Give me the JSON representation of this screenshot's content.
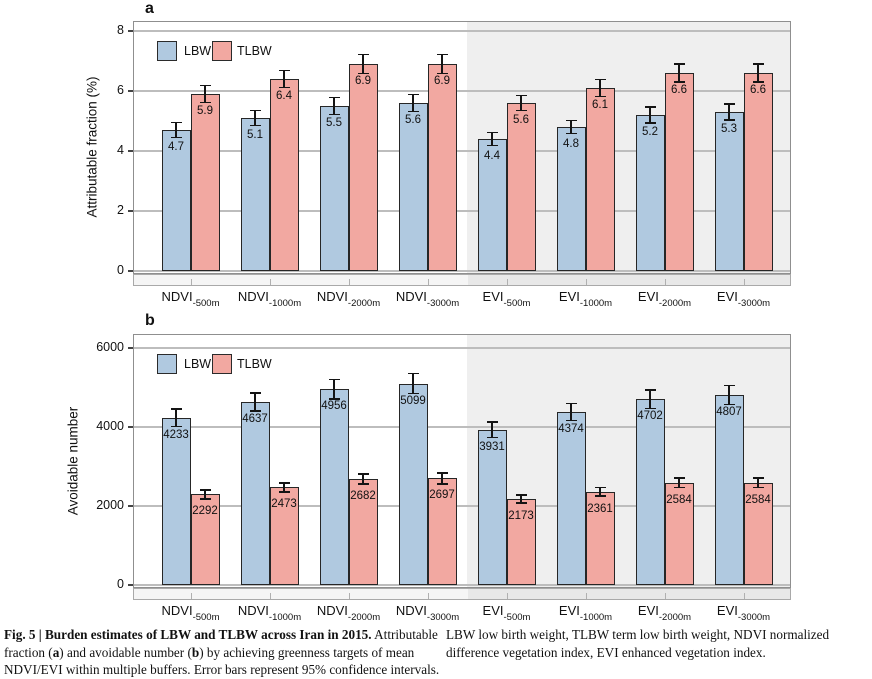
{
  "colors": {
    "lbw_fill": "#b0c9e0",
    "tlbw_fill": "#f2a8a1",
    "bar_border": "#262626",
    "panel_border": "#8f8f8f",
    "gridline": "#bdbdbd",
    "shade": "#efefef",
    "strip_left": "#f5f5f5",
    "strip_right": "#e8e8e8",
    "error_bar": "#141414"
  },
  "chart_data": [
    {
      "type": "bar",
      "panel_label": "a",
      "title": "",
      "xlabel": "",
      "ylabel": "Attributable fraction (%)",
      "ylim": [
        0,
        8
      ],
      "ytick_values": [
        0,
        2,
        4,
        6,
        8
      ],
      "ytick_labels": [
        "0",
        "2",
        "4",
        "6",
        "8"
      ],
      "grid": true,
      "legend_position": "top-left-inside",
      "legend_entries": [
        "LBW",
        "TLBW"
      ],
      "shaded_region_note": "EVI group half of panel shaded light gray",
      "categories": [
        {
          "main": "NDVI",
          "sub": "-500m"
        },
        {
          "main": "NDVI",
          "sub": "-1000m"
        },
        {
          "main": "NDVI",
          "sub": "-2000m"
        },
        {
          "main": "NDVI",
          "sub": "-3000m"
        },
        {
          "main": "EVI",
          "sub": "-500m"
        },
        {
          "main": "EVI",
          "sub": "-1000m"
        },
        {
          "main": "EVI",
          "sub": "-2000m"
        },
        {
          "main": "EVI",
          "sub": "-3000m"
        }
      ],
      "series": [
        {
          "name": "LBW",
          "color_key": "lbw_fill",
          "values": [
            4.7,
            5.1,
            5.5,
            5.6,
            4.4,
            4.8,
            5.2,
            5.3
          ],
          "labels": [
            "4.7",
            "5.1",
            "5.5",
            "5.6",
            "4.4",
            "4.8",
            "5.2",
            "5.3"
          ],
          "errors": [
            0.25,
            0.25,
            0.28,
            0.28,
            0.22,
            0.22,
            0.27,
            0.27
          ]
        },
        {
          "name": "TLBW",
          "color_key": "tlbw_fill",
          "values": [
            5.9,
            6.4,
            6.9,
            6.9,
            5.6,
            6.1,
            6.6,
            6.6
          ],
          "labels": [
            "5.9",
            "6.4",
            "6.9",
            "6.9",
            "5.6",
            "6.1",
            "6.6",
            "6.6"
          ],
          "errors": [
            0.28,
            0.28,
            0.32,
            0.32,
            0.25,
            0.28,
            0.3,
            0.3
          ]
        }
      ]
    },
    {
      "type": "bar",
      "panel_label": "b",
      "title": "",
      "xlabel": "",
      "ylabel": "Avoidable number",
      "ylim": [
        0,
        6000
      ],
      "ytick_values": [
        0,
        2000,
        4000,
        6000
      ],
      "ytick_labels": [
        "0",
        "2000",
        "4000",
        "6000"
      ],
      "grid": true,
      "legend_position": "top-left-inside",
      "legend_entries": [
        "LBW",
        "TLBW"
      ],
      "shaded_region_note": "EVI group half of panel shaded light gray",
      "categories": [
        {
          "main": "NDVI",
          "sub": "-500m"
        },
        {
          "main": "NDVI",
          "sub": "-1000m"
        },
        {
          "main": "NDVI",
          "sub": "-2000m"
        },
        {
          "main": "NDVI",
          "sub": "-3000m"
        },
        {
          "main": "EVI",
          "sub": "-500m"
        },
        {
          "main": "EVI",
          "sub": "-1000m"
        },
        {
          "main": "EVI",
          "sub": "-2000m"
        },
        {
          "main": "EVI",
          "sub": "-3000m"
        }
      ],
      "series": [
        {
          "name": "LBW",
          "color_key": "lbw_fill",
          "values": [
            4233,
            4637,
            4956,
            5099,
            3931,
            4374,
            4702,
            4807
          ],
          "labels": [
            "4233",
            "4637",
            "4956",
            "5099",
            "3931",
            "4374",
            "4702",
            "4807"
          ],
          "errors": [
            220,
            230,
            245,
            250,
            200,
            215,
            230,
            240
          ]
        },
        {
          "name": "TLBW",
          "color_key": "tlbw_fill",
          "values": [
            2292,
            2473,
            2682,
            2697,
            2173,
            2361,
            2584,
            2584
          ],
          "labels": [
            "2292",
            "2473",
            "2682",
            "2697",
            "2173",
            "2361",
            "2584",
            "2584"
          ],
          "errors": [
            110,
            115,
            130,
            135,
            100,
            110,
            120,
            120
          ]
        }
      ]
    }
  ],
  "caption": {
    "left_segments": [
      {
        "text": "Fig. 5 | Burden estimates of LBW and TLBW across Iran in 2015.",
        "bold": true
      },
      {
        "text": " Attributable fraction (",
        "bold": false
      },
      {
        "text": "a",
        "bold": true
      },
      {
        "text": ") and avoidable number (",
        "bold": false
      },
      {
        "text": "b",
        "bold": true
      },
      {
        "text": ") by achieving greenness targets of mean NDVI/EVI within multiple buffers. Error bars represent 95% confidence intervals.",
        "bold": false
      }
    ],
    "right_text": "LBW low birth weight, TLBW term low birth weight, NDVI normalized difference vegetation index, EVI enhanced vegetation index."
  }
}
